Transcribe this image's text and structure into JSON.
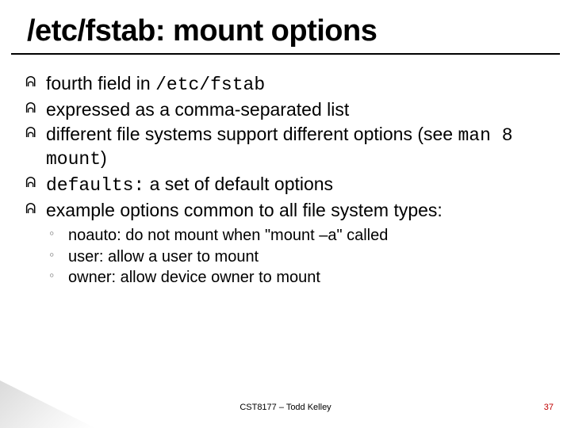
{
  "title": "/etc/fstab: mount options",
  "bullets": {
    "b1a": "fourth field in ",
    "b1b": "/etc/fstab",
    "b2": "expressed as a comma-separated list",
    "b3a": "different file systems support different options (see ",
    "b3b": "man 8 mount",
    "b3c": ")",
    "b4a": "defaults:",
    "b4b": "  a set of default options",
    "b5": "example options common to all file system types:"
  },
  "sub": {
    "s1": "noauto: do not mount when \"mount –a\" called",
    "s2": "user: allow a user to mount",
    "s3": "owner: allow device owner to mount"
  },
  "footer": {
    "center": "CST8177 – Todd Kelley",
    "page": "37"
  },
  "colors": {
    "title": "#000000",
    "text": "#000000",
    "pagenum": "#c00000",
    "underline": "#000000"
  },
  "fonts": {
    "title_size_pt": 30,
    "body_size_pt": 18,
    "sub_size_pt": 16,
    "footer_size_pt": 9
  }
}
